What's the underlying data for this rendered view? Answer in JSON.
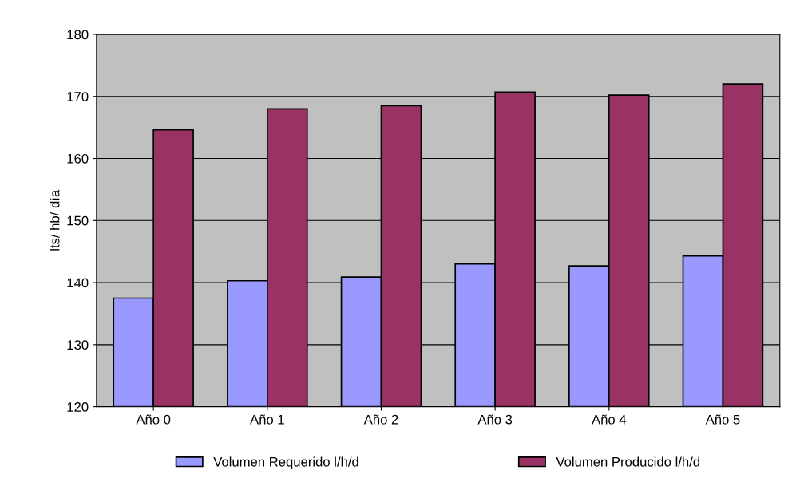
{
  "chart_data": {
    "type": "bar",
    "ylabel": "lts/ hb/ día",
    "categories": [
      "Año 0",
      "Año 1",
      "Año 2",
      "Año 3",
      "Año 4",
      "Año 5"
    ],
    "series": [
      {
        "name": "Volumen Requerido l/h/d",
        "color": "#9999ff",
        "values": [
          137.5,
          140.3,
          140.9,
          143.0,
          142.7,
          144.3
        ]
      },
      {
        "name": "Volumen Producido l/h/d",
        "color": "#993366",
        "values": [
          164.6,
          168.0,
          168.5,
          170.7,
          170.2,
          172.0
        ]
      }
    ],
    "ylim": [
      120,
      180
    ],
    "yticks": [
      120,
      130,
      140,
      150,
      160,
      170,
      180
    ],
    "grid": "y",
    "legend": "bottom"
  }
}
